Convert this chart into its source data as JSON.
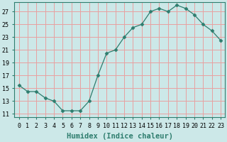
{
  "x": [
    0,
    1,
    2,
    3,
    4,
    5,
    6,
    7,
    8,
    9,
    10,
    11,
    12,
    13,
    14,
    15,
    16,
    17,
    18,
    19,
    20,
    21,
    22,
    23
  ],
  "y": [
    15.5,
    14.5,
    14.5,
    13.5,
    13.0,
    11.5,
    11.5,
    11.5,
    13.0,
    17.0,
    20.5,
    21.0,
    23.0,
    24.5,
    25.0,
    27.0,
    27.5,
    27.0,
    28.0,
    27.5,
    26.5,
    25.0,
    24.0,
    22.5
  ],
  "line_color": "#2e7d6e",
  "marker": "D",
  "marker_size": 2.5,
  "bg_color": "#cce8e8",
  "grid_color": "#e8a0a0",
  "xlabel": "Humidex (Indice chaleur)",
  "xlim": [
    -0.5,
    23.5
  ],
  "ylim": [
    10.5,
    28.5
  ],
  "yticks": [
    11,
    13,
    15,
    17,
    19,
    21,
    23,
    25,
    27
  ],
  "xticks": [
    0,
    1,
    2,
    3,
    4,
    5,
    6,
    7,
    8,
    9,
    10,
    11,
    12,
    13,
    14,
    15,
    16,
    17,
    18,
    19,
    20,
    21,
    22,
    23
  ],
  "tick_fontsize": 6,
  "label_fontsize": 7.5
}
